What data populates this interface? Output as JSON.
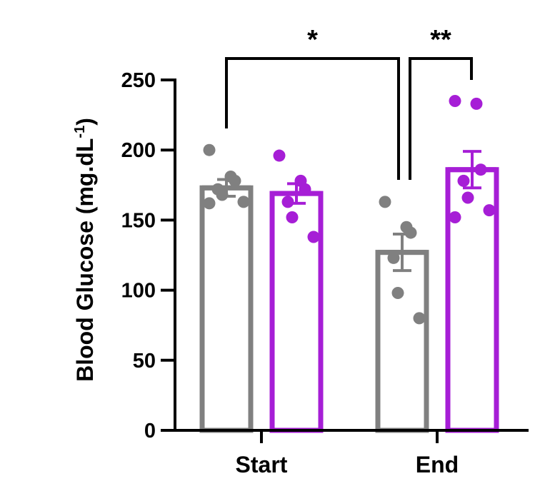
{
  "chart_data": {
    "type": "bar",
    "ylabel": "Blood Glucose (mg.dL",
    "ylabel_sup": "-1",
    "ylabel_close": ")",
    "ylim": [
      0,
      250
    ],
    "yticks": [
      0,
      50,
      100,
      150,
      200,
      250
    ],
    "categories": [
      "Start",
      "End"
    ],
    "grid": false,
    "legend": "none",
    "series": [
      {
        "color": "#808080",
        "values": [
          173,
          127
        ],
        "sem": [
          6,
          13
        ],
        "points": [
          [
            200,
            181,
            178,
            172,
            168,
            163,
            162
          ],
          [
            163,
            145,
            141,
            123,
            98,
            80
          ]
        ]
      },
      {
        "color": "#a61ed6",
        "values": [
          169,
          186
        ],
        "sem": [
          7,
          13
        ],
        "points": [
          [
            196,
            178,
            172,
            163,
            152,
            138
          ],
          [
            235,
            233,
            186,
            178,
            166,
            157,
            152
          ]
        ]
      }
    ],
    "significance": [
      {
        "label": "*",
        "from": [
          0,
          0
        ],
        "to": [
          1,
          0
        ]
      },
      {
        "label": "**",
        "from": [
          1,
          0
        ],
        "to": [
          1,
          1
        ]
      }
    ]
  }
}
